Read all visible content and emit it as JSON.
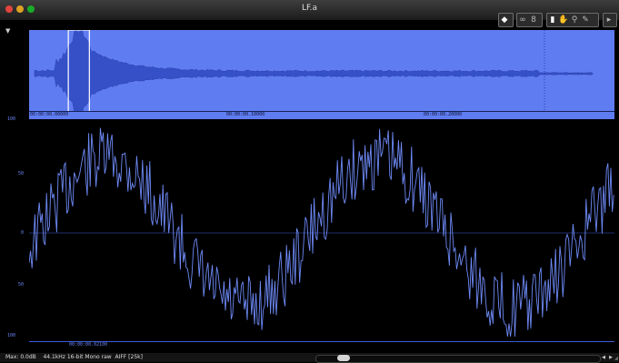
{
  "window": {
    "title": "LF.a"
  },
  "toolbar": {
    "icons": [
      "loop-marker-icon",
      "loop-icon",
      "scrub-icon",
      "select-tool-icon",
      "hand-tool-icon",
      "zoom-tool-icon",
      "pencil-tool-icon",
      "play-icon"
    ]
  },
  "overview": {
    "ruler_labels": [
      "00:00:00.00000",
      "00:00:00.10000",
      "00:00:00.20000"
    ],
    "selection_start_fraction": 0.067,
    "selection_end_fraction": 0.103,
    "envelope_color": "#3650c8",
    "background_color": "#5f7cf0"
  },
  "detail": {
    "y_labels": [
      "100",
      "50",
      "0",
      "50",
      "100"
    ],
    "ruler_label": "00:00:00.02100",
    "waveform_color": "#6e8af7"
  },
  "statusbar": {
    "max": "Max: 0.0dB",
    "format": "44.1kHz 16-bit Mono raw  AIFF [25k]"
  },
  "colors": {
    "accent": "#5f7cf0"
  }
}
